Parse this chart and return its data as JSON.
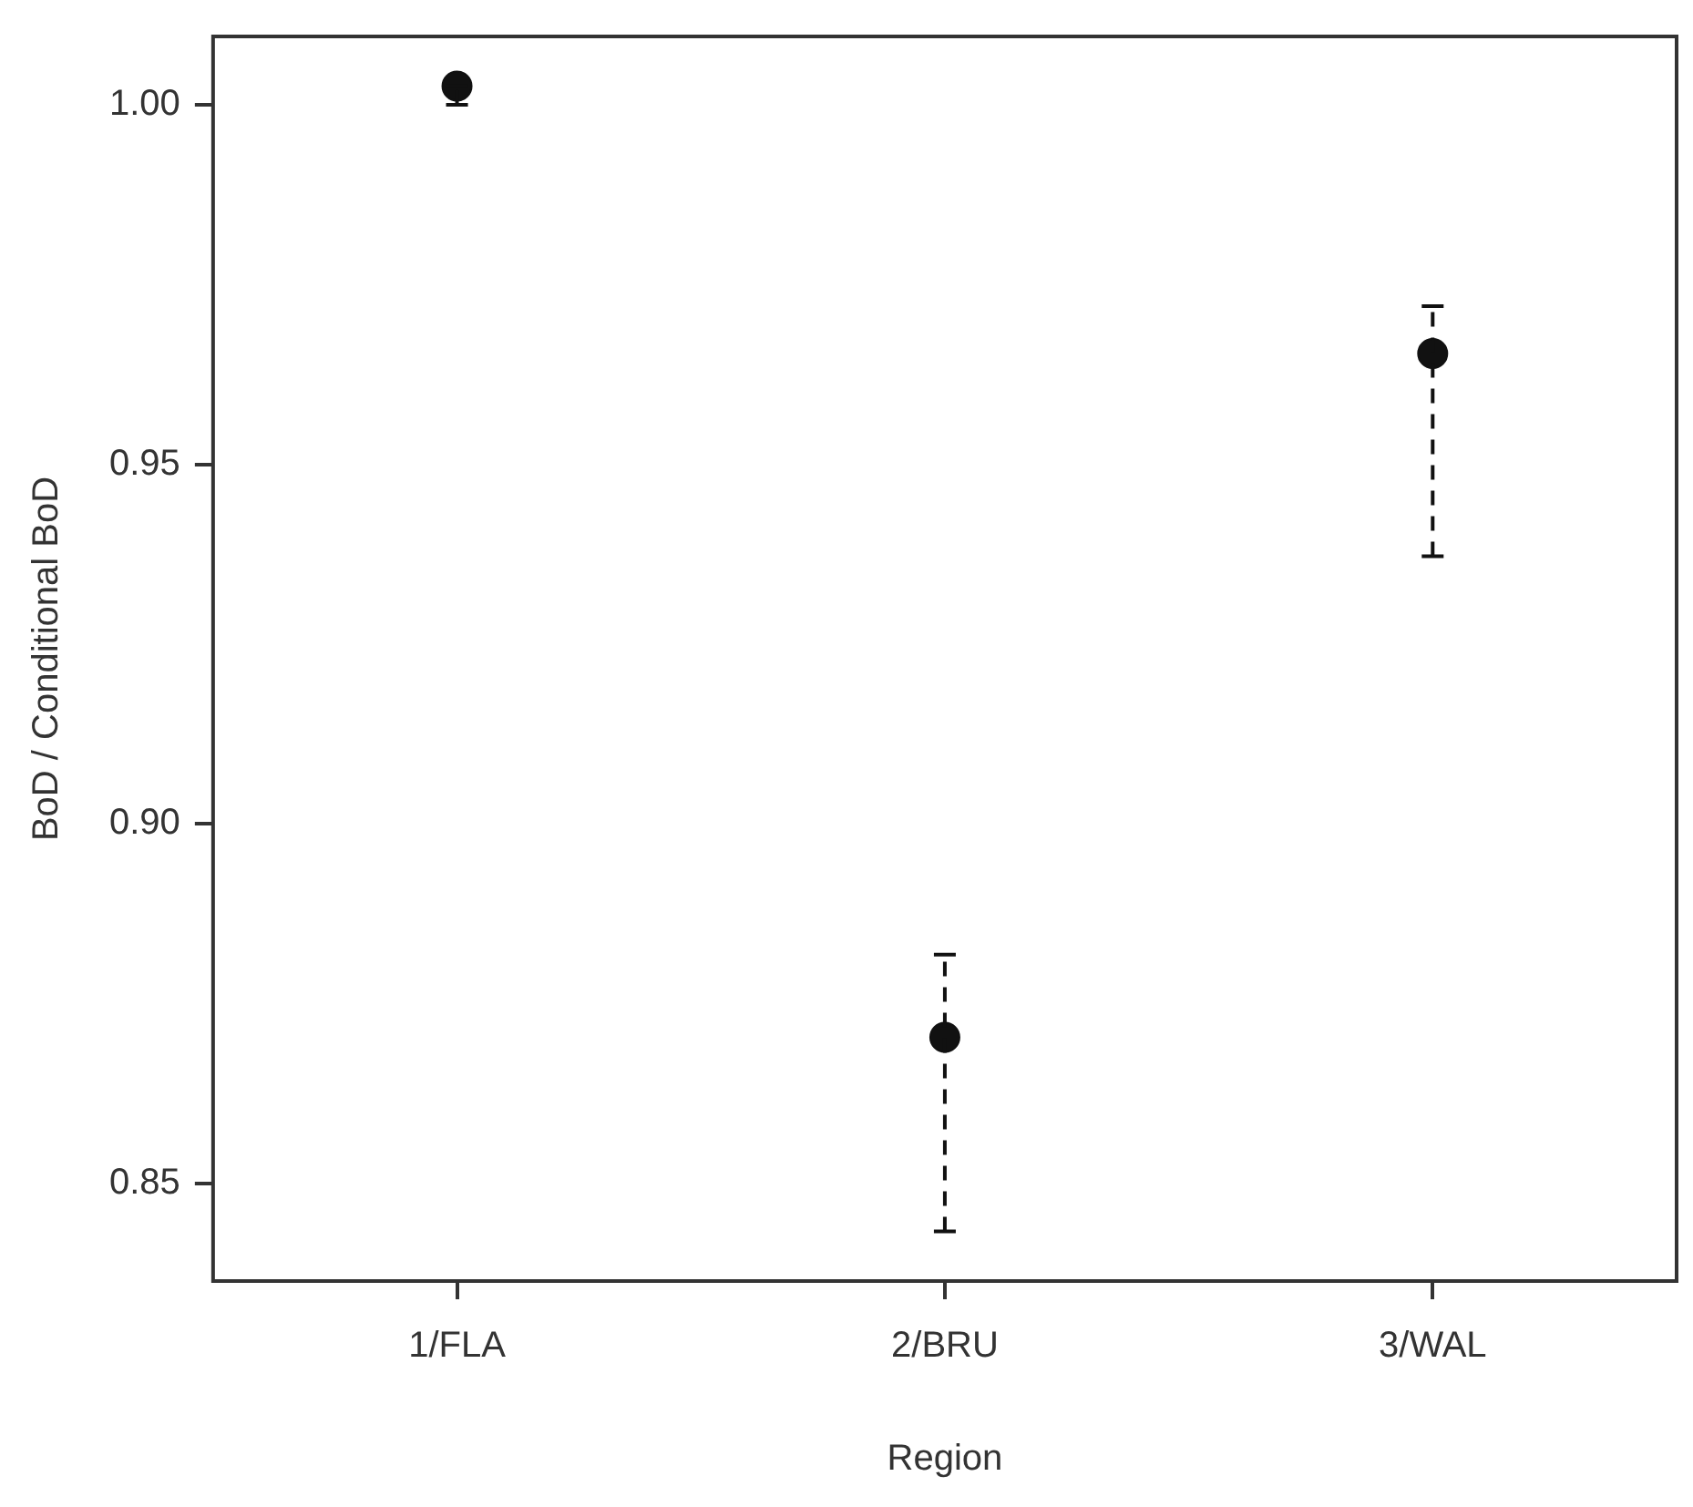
{
  "chart_data": {
    "type": "scatter",
    "xlabel": "Region",
    "ylabel": "BoD / Conditional BoD",
    "categories": [
      "1/FLA",
      "2/BRU",
      "3/WAL"
    ],
    "values": [
      1.0026,
      0.8703,
      0.9654
    ],
    "errors": [
      [
        1.0,
        1.0026
      ],
      [
        0.8433,
        0.8818
      ],
      [
        0.9372,
        0.972
      ]
    ],
    "color": "#111111",
    "marker": "circle",
    "grid": false,
    "legend": false,
    "ylim": [
      0.8364,
      1.0095
    ],
    "yticks": [
      {
        "value": 0.85,
        "label": "0.85"
      },
      {
        "value": 0.9,
        "label": "0.90"
      },
      {
        "value": 0.95,
        "label": "0.95"
      },
      {
        "value": 1.0,
        "label": "1.00"
      }
    ]
  }
}
